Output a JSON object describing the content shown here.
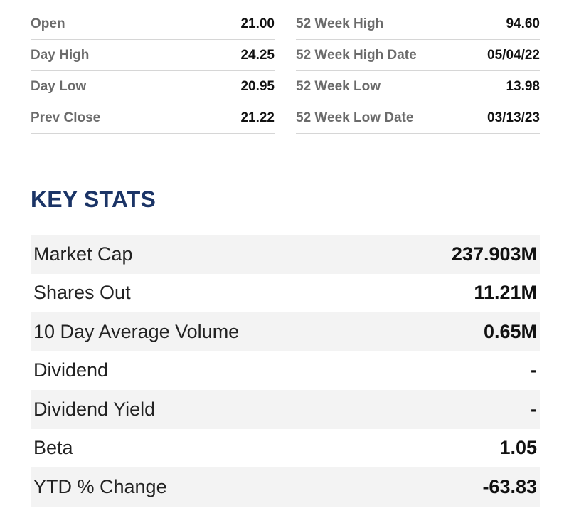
{
  "quote": {
    "left": [
      {
        "label": "Open",
        "value": "21.00"
      },
      {
        "label": "Day High",
        "value": "24.25"
      },
      {
        "label": "Day Low",
        "value": "20.95"
      },
      {
        "label": "Prev Close",
        "value": "21.22"
      }
    ],
    "right": [
      {
        "label": "52 Week High",
        "value": "94.60"
      },
      {
        "label": "52 Week High Date",
        "value": "05/04/22"
      },
      {
        "label": "52 Week Low",
        "value": "13.98"
      },
      {
        "label": "52 Week Low Date",
        "value": "03/13/23"
      }
    ]
  },
  "key_stats": {
    "title": "KEY STATS",
    "rows": [
      {
        "label": "Market Cap",
        "value": "237.903M"
      },
      {
        "label": "Shares Out",
        "value": "11.21M"
      },
      {
        "label": "10 Day Average Volume",
        "value": "0.65M"
      },
      {
        "label": "Dividend",
        "value": "-"
      },
      {
        "label": "Dividend Yield",
        "value": "-"
      },
      {
        "label": "Beta",
        "value": "1.05"
      },
      {
        "label": "YTD % Change",
        "value": "-63.83"
      }
    ]
  },
  "colors": {
    "title": "#1b3466",
    "label_gray": "#6b6b6b",
    "row_stripe": "#f3f3f3",
    "divider": "#d6d6d6"
  }
}
